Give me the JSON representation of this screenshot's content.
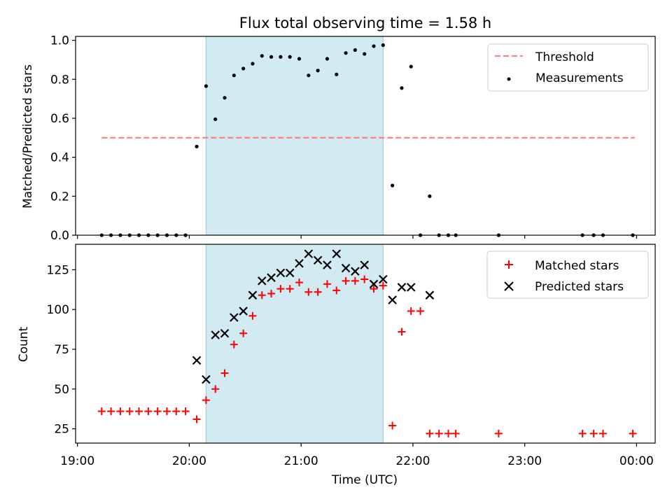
{
  "title": "Flux total observing time = 1.58 h",
  "x_ticks": [
    "19:00",
    "20:00",
    "21:00",
    "22:00",
    "23:00",
    "00:00"
  ],
  "xlabel": "Time (UTC)",
  "chart_data": [
    {
      "type": "scatter",
      "ylabel": "Matched/Predicted stars",
      "ylim": [
        0,
        1.02
      ],
      "y_ticks": [
        "0.0",
        "0.2",
        "0.4",
        "0.6",
        "0.8",
        "1.0"
      ],
      "xlim": [
        "18:59",
        "24:10"
      ],
      "observing_window": {
        "start": "20:09",
        "end": "21:44",
        "color": "#add8e6"
      },
      "legend": {
        "placement": "top-right",
        "entries": [
          "Threshold",
          "Measurements"
        ]
      },
      "threshold": {
        "name": "Threshold",
        "value": 0.5,
        "x_start": "19:13",
        "x_end": "23:59",
        "color": "#ff7f7f",
        "style": "dashed"
      },
      "series": [
        {
          "name": "Measurements",
          "color": "#000000",
          "marker": "dot",
          "points": [
            [
              "19:13",
              0.0
            ],
            [
              "19:18",
              0.0
            ],
            [
              "19:23",
              0.0
            ],
            [
              "19:28",
              0.0
            ],
            [
              "19:33",
              0.0
            ],
            [
              "19:38",
              0.0
            ],
            [
              "19:43",
              0.0
            ],
            [
              "19:48",
              0.0
            ],
            [
              "19:53",
              0.0
            ],
            [
              "19:58",
              0.0
            ],
            [
              "20:04",
              0.455
            ],
            [
              "20:09",
              0.765
            ],
            [
              "20:14",
              0.595
            ],
            [
              "20:19",
              0.705
            ],
            [
              "20:24",
              0.82
            ],
            [
              "20:29",
              0.855
            ],
            [
              "20:34",
              0.88
            ],
            [
              "20:39",
              0.92
            ],
            [
              "20:44",
              0.915
            ],
            [
              "20:49",
              0.915
            ],
            [
              "20:54",
              0.915
            ],
            [
              "20:59",
              0.905
            ],
            [
              "21:04",
              0.82
            ],
            [
              "21:09",
              0.845
            ],
            [
              "21:14",
              0.905
            ],
            [
              "21:19",
              0.825
            ],
            [
              "21:24",
              0.935
            ],
            [
              "21:29",
              0.95
            ],
            [
              "21:34",
              0.93
            ],
            [
              "21:39",
              0.97
            ],
            [
              "21:44",
              0.975
            ],
            [
              "21:49",
              0.255
            ],
            [
              "21:54",
              0.755
            ],
            [
              "21:59",
              0.865
            ],
            [
              "22:04",
              0.0
            ],
            [
              "22:09",
              0.2
            ],
            [
              "22:14",
              0.0
            ],
            [
              "22:19",
              0.0
            ],
            [
              "22:23",
              0.0
            ],
            [
              "22:46",
              0.0
            ],
            [
              "23:31",
              0.0
            ],
            [
              "23:37",
              0.0
            ],
            [
              "23:42",
              0.0
            ],
            [
              "23:58",
              0.0
            ]
          ]
        }
      ]
    },
    {
      "type": "scatter",
      "ylabel": "Count",
      "ylim": [
        16,
        141
      ],
      "y_ticks": [
        "25",
        "50",
        "75",
        "100",
        "125"
      ],
      "xlim": [
        "18:59",
        "24:10"
      ],
      "observing_window": {
        "start": "20:09",
        "end": "21:44",
        "color": "#add8e6"
      },
      "legend": {
        "placement": "top-right",
        "entries": [
          "Matched stars",
          "Predicted stars"
        ]
      },
      "series": [
        {
          "name": "Matched stars",
          "color": "#ff0000",
          "marker": "plus",
          "points": [
            [
              "19:13",
              36
            ],
            [
              "19:18",
              36
            ],
            [
              "19:23",
              36
            ],
            [
              "19:28",
              36
            ],
            [
              "19:33",
              36
            ],
            [
              "19:38",
              36
            ],
            [
              "19:43",
              36
            ],
            [
              "19:48",
              36
            ],
            [
              "19:53",
              36
            ],
            [
              "19:58",
              36
            ],
            [
              "20:04",
              31
            ],
            [
              "20:09",
              43
            ],
            [
              "20:14",
              50
            ],
            [
              "20:19",
              60
            ],
            [
              "20:24",
              78
            ],
            [
              "20:29",
              85
            ],
            [
              "20:34",
              96
            ],
            [
              "20:39",
              109
            ],
            [
              "20:44",
              110
            ],
            [
              "20:49",
              113
            ],
            [
              "20:54",
              113
            ],
            [
              "20:59",
              117
            ],
            [
              "21:04",
              111
            ],
            [
              "21:09",
              111
            ],
            [
              "21:14",
              116
            ],
            [
              "21:19",
              112
            ],
            [
              "21:24",
              118
            ],
            [
              "21:29",
              118
            ],
            [
              "21:34",
              119
            ],
            [
              "21:39",
              113
            ],
            [
              "21:44",
              115
            ],
            [
              "21:49",
              27
            ],
            [
              "21:54",
              86
            ],
            [
              "21:59",
              99
            ],
            [
              "22:04",
              99
            ],
            [
              "22:09",
              22
            ],
            [
              "22:14",
              22
            ],
            [
              "22:19",
              22
            ],
            [
              "22:23",
              22
            ],
            [
              "22:46",
              22
            ],
            [
              "23:31",
              22
            ],
            [
              "23:37",
              22
            ],
            [
              "23:42",
              22
            ],
            [
              "23:58",
              22
            ]
          ]
        },
        {
          "name": "Predicted stars",
          "color": "#000000",
          "marker": "x",
          "points": [
            [
              "20:04",
              68
            ],
            [
              "20:09",
              56
            ],
            [
              "20:14",
              84
            ],
            [
              "20:19",
              85
            ],
            [
              "20:24",
              95
            ],
            [
              "20:29",
              99
            ],
            [
              "20:34",
              109
            ],
            [
              "20:39",
              118
            ],
            [
              "20:44",
              120
            ],
            [
              "20:49",
              123
            ],
            [
              "20:54",
              123
            ],
            [
              "20:59",
              129
            ],
            [
              "21:04",
              135
            ],
            [
              "21:09",
              131
            ],
            [
              "21:14",
              128
            ],
            [
              "21:19",
              135
            ],
            [
              "21:24",
              126
            ],
            [
              "21:29",
              124
            ],
            [
              "21:34",
              128
            ],
            [
              "21:39",
              116
            ],
            [
              "21:44",
              119
            ],
            [
              "21:49",
              106
            ],
            [
              "21:54",
              114
            ],
            [
              "21:59",
              114
            ],
            [
              "22:09",
              109
            ]
          ]
        }
      ]
    }
  ]
}
